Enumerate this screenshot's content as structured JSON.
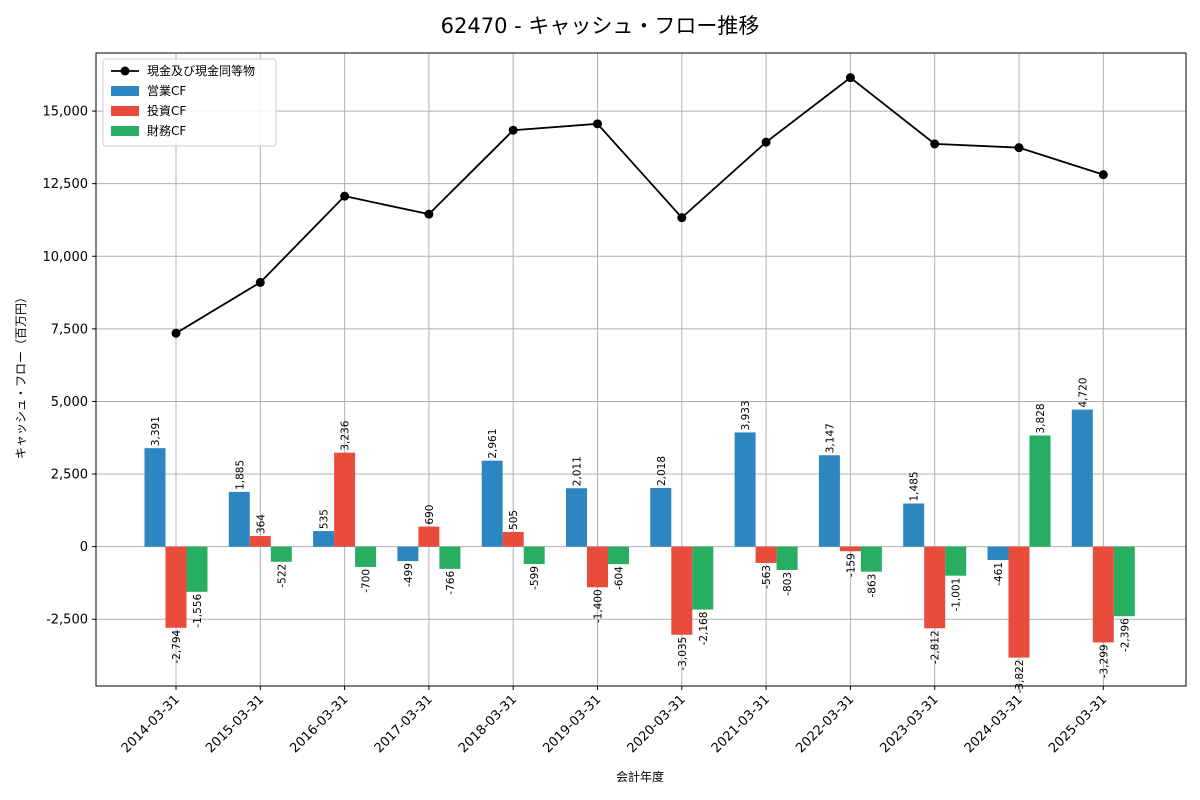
{
  "chart_data": {
    "type": "bar",
    "title": "62470 - キャッシュ・フロー推移",
    "xlabel": "会計年度",
    "ylabel": "キャッシュ・フロー（百万円）",
    "categories": [
      "2014-03-31",
      "2015-03-31",
      "2016-03-31",
      "2017-03-31",
      "2018-03-31",
      "2019-03-31",
      "2020-03-31",
      "2021-03-31",
      "2022-03-31",
      "2023-03-31",
      "2024-03-31",
      "2025-03-31"
    ],
    "ylim": [
      -4800,
      17000
    ],
    "yticks": [
      -2500,
      0,
      2500,
      5000,
      7500,
      10000,
      12500,
      15000
    ],
    "ytick_labels": [
      "-2,500",
      "0",
      "2,500",
      "5,000",
      "7,500",
      "10,000",
      "12,500",
      "15,000"
    ],
    "grid": true,
    "legend_position": "top-left",
    "series": [
      {
        "name": "営業CF",
        "kind": "bar",
        "color": "#2e86c1",
        "values": [
          3391,
          1885,
          535,
          -499,
          2961,
          2011,
          2018,
          3933,
          3147,
          1485,
          -461,
          4720
        ],
        "labels": [
          "3,391",
          "1,885",
          "535",
          "-499",
          "2,961",
          "2,011",
          "2,018",
          "3,933",
          "3,147",
          "1,485",
          "-461",
          "4,720"
        ]
      },
      {
        "name": "投資CF",
        "kind": "bar",
        "color": "#e74c3c",
        "values": [
          -2794,
          364,
          3236,
          690,
          505,
          -1400,
          -3035,
          -563,
          -159,
          -2812,
          -3822,
          -3299
        ],
        "labels": [
          "-2,794",
          "364",
          "3,236",
          "690",
          "505",
          "-1,400",
          "-3,035",
          "-563",
          "-159",
          "-2,812",
          "-3,822",
          "-3,299"
        ]
      },
      {
        "name": "財務CF",
        "kind": "bar",
        "color": "#27ae60",
        "values": [
          -1556,
          -522,
          -700,
          -766,
          -599,
          -604,
          -2168,
          -803,
          -863,
          -1001,
          3828,
          -2396
        ],
        "labels": [
          "-1,556",
          "-522",
          "-700",
          "-766",
          "-599",
          "-604",
          "-2,168",
          "-803",
          "-863",
          "-1,001",
          "3,828",
          "-2,396"
        ]
      }
    ],
    "line_series": {
      "name": "現金及び現金同等物",
      "kind": "line",
      "color": "#000000",
      "values": [
        7350,
        9100,
        12070,
        11450,
        14340,
        14560,
        11330,
        13930,
        16150,
        13870,
        13740,
        12810
      ]
    }
  }
}
